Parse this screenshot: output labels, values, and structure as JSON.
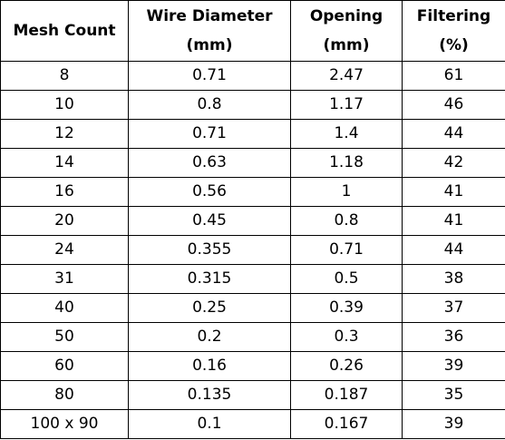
{
  "table": {
    "headers": [
      {
        "line1": "Mesh Count",
        "line2": ""
      },
      {
        "line1": "Wire Diameter",
        "line2": "(mm)"
      },
      {
        "line1": "Opening",
        "line2": "(mm)"
      },
      {
        "line1": "Filtering",
        "line2": "(%)"
      }
    ],
    "rows": [
      [
        "8",
        "0.71",
        "2.47",
        "61"
      ],
      [
        "10",
        "0.8",
        "1.17",
        "46"
      ],
      [
        "12",
        "0.71",
        "1.4",
        "44"
      ],
      [
        "14",
        "0.63",
        "1.18",
        "42"
      ],
      [
        "16",
        "0.56",
        "1",
        "41"
      ],
      [
        "20",
        "0.45",
        "0.8",
        "41"
      ],
      [
        "24",
        "0.355",
        "0.71",
        "44"
      ],
      [
        "31",
        "0.315",
        "0.5",
        "38"
      ],
      [
        "40",
        "0.25",
        "0.39",
        "37"
      ],
      [
        "50",
        "0.2",
        "0.3",
        "36"
      ],
      [
        "60",
        "0.16",
        "0.26",
        "39"
      ],
      [
        "80",
        "0.135",
        "0.187",
        "35"
      ],
      [
        "100 x 90",
        "0.1",
        "0.167",
        "39"
      ]
    ]
  }
}
